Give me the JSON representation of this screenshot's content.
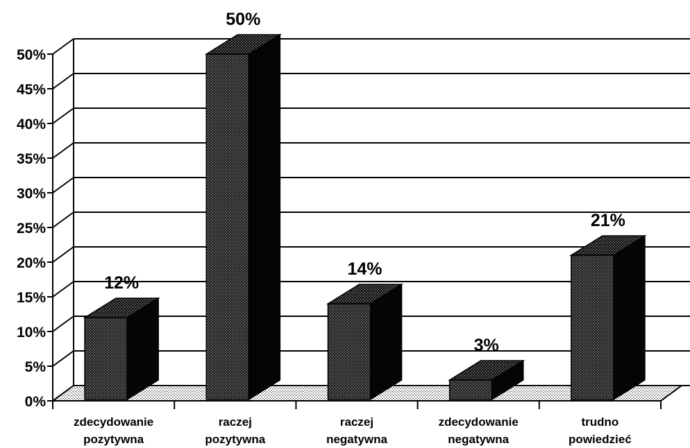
{
  "chart_data": {
    "type": "bar",
    "categories": [
      [
        "zdecydowanie",
        "pozytywna"
      ],
      [
        "raczej",
        "pozytywna"
      ],
      [
        "raczej",
        "negatywna"
      ],
      [
        "zdecydowanie",
        "negatywna"
      ],
      [
        "trudno",
        "powiedzieć"
      ]
    ],
    "values": [
      12,
      50,
      14,
      3,
      21
    ],
    "data_labels": [
      "12%",
      "50%",
      "14%",
      "3%",
      "21%"
    ],
    "y_tick_labels": [
      "0%",
      "5%",
      "10%",
      "15%",
      "20%",
      "25%",
      "30%",
      "35%",
      "40%",
      "45%",
      "50%"
    ],
    "ylim": [
      0,
      50
    ],
    "ystep": 5,
    "grid": true,
    "style": "3d"
  }
}
